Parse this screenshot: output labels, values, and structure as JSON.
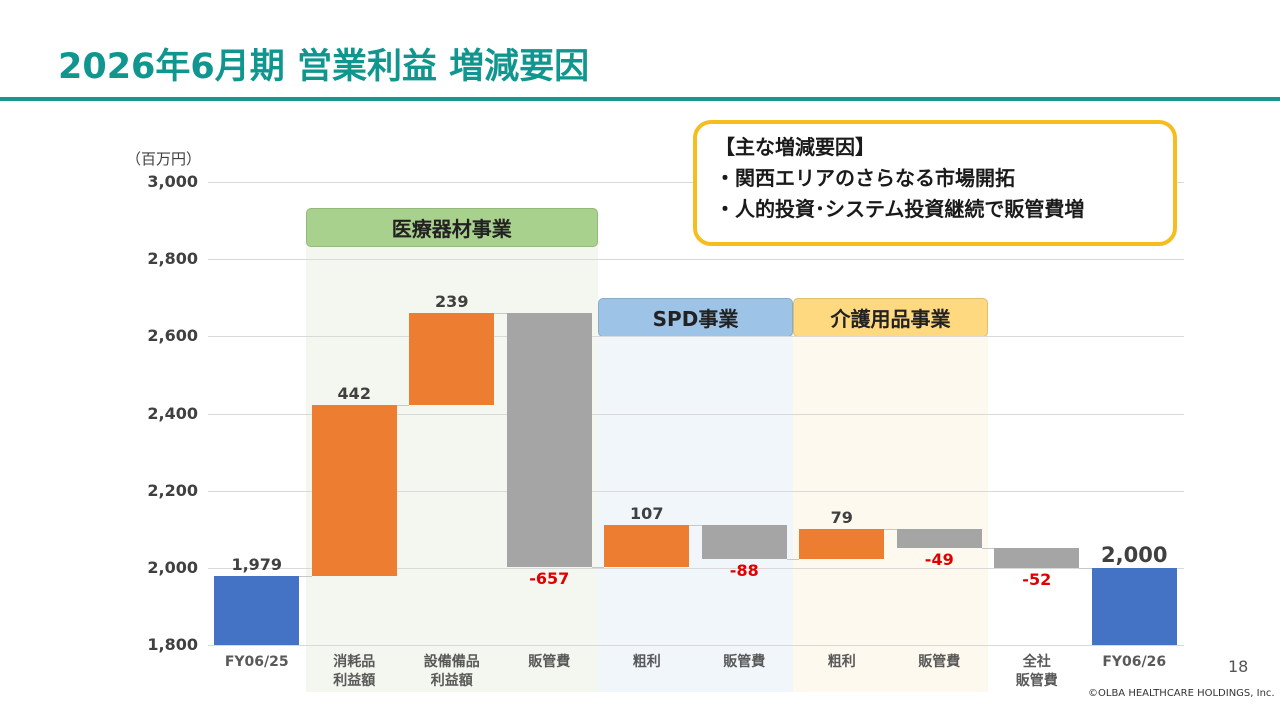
{
  "slide": {
    "title": "2026年6月期 営業利益 増減要因",
    "page_number": "18",
    "copyright": "©OLBA HEALTHCARE HOLDINGS, Inc.",
    "accent_color": "#10968f"
  },
  "callout": {
    "heading": "【主な増減要因】",
    "items": [
      "・関西エリアのさらなる市場開拓",
      "・人的投資･システム投資継続で販管費増"
    ],
    "border_color": "#f5be1e"
  },
  "chart_data": {
    "type": "waterfall",
    "unit_label": "（百万円）",
    "ylim": [
      1800,
      3000
    ],
    "yticks": [
      "1,800",
      "2,000",
      "2,200",
      "2,400",
      "2,600",
      "2,800",
      "3,000"
    ],
    "ytick_values": [
      1800,
      2000,
      2200,
      2400,
      2600,
      2800,
      3000
    ],
    "grid": true,
    "categories": [
      {
        "label": [
          "FY06/25"
        ],
        "value": 1979,
        "kind": "total",
        "data_label": "1,979"
      },
      {
        "label": [
          "消耗品",
          "利益額"
        ],
        "value": 442,
        "kind": "increase",
        "data_label": "442"
      },
      {
        "label": [
          "設備備品",
          "利益額"
        ],
        "value": 239,
        "kind": "increase",
        "data_label": "239"
      },
      {
        "label": [
          "販管費"
        ],
        "value": -657,
        "kind": "decrease",
        "data_label": "-657"
      },
      {
        "label": [
          "粗利"
        ],
        "value": 107,
        "kind": "increase",
        "data_label": "107"
      },
      {
        "label": [
          "販管費"
        ],
        "value": -88,
        "kind": "decrease",
        "data_label": "-88"
      },
      {
        "label": [
          "粗利"
        ],
        "value": 79,
        "kind": "increase",
        "data_label": "79"
      },
      {
        "label": [
          "販管費"
        ],
        "value": -49,
        "kind": "decrease",
        "data_label": "-49"
      },
      {
        "label": [
          "全社",
          "販管費"
        ],
        "value": -52,
        "kind": "decrease",
        "data_label": "-52"
      },
      {
        "label": [
          "FY06/26"
        ],
        "value": 2000,
        "kind": "total",
        "data_label": "2,000"
      }
    ],
    "segments": [
      {
        "name": "医療器材事業",
        "from": 1,
        "to": 3,
        "label_color": "#a9d18e",
        "bg_color": "#f4f7ef"
      },
      {
        "name": "SPD事業",
        "from": 4,
        "to": 5,
        "label_color": "#9dc3e6",
        "bg_color": "#f1f6fb"
      },
      {
        "name": "介護用品事業",
        "from": 6,
        "to": 7,
        "label_color": "#ffd980",
        "bg_color": "#fef9ee"
      }
    ],
    "colors": {
      "total": "#4472c4",
      "increase": "#ed7d31",
      "decrease": "#a5a5a5",
      "negative_label": "#e00000",
      "label": "#404040"
    }
  }
}
